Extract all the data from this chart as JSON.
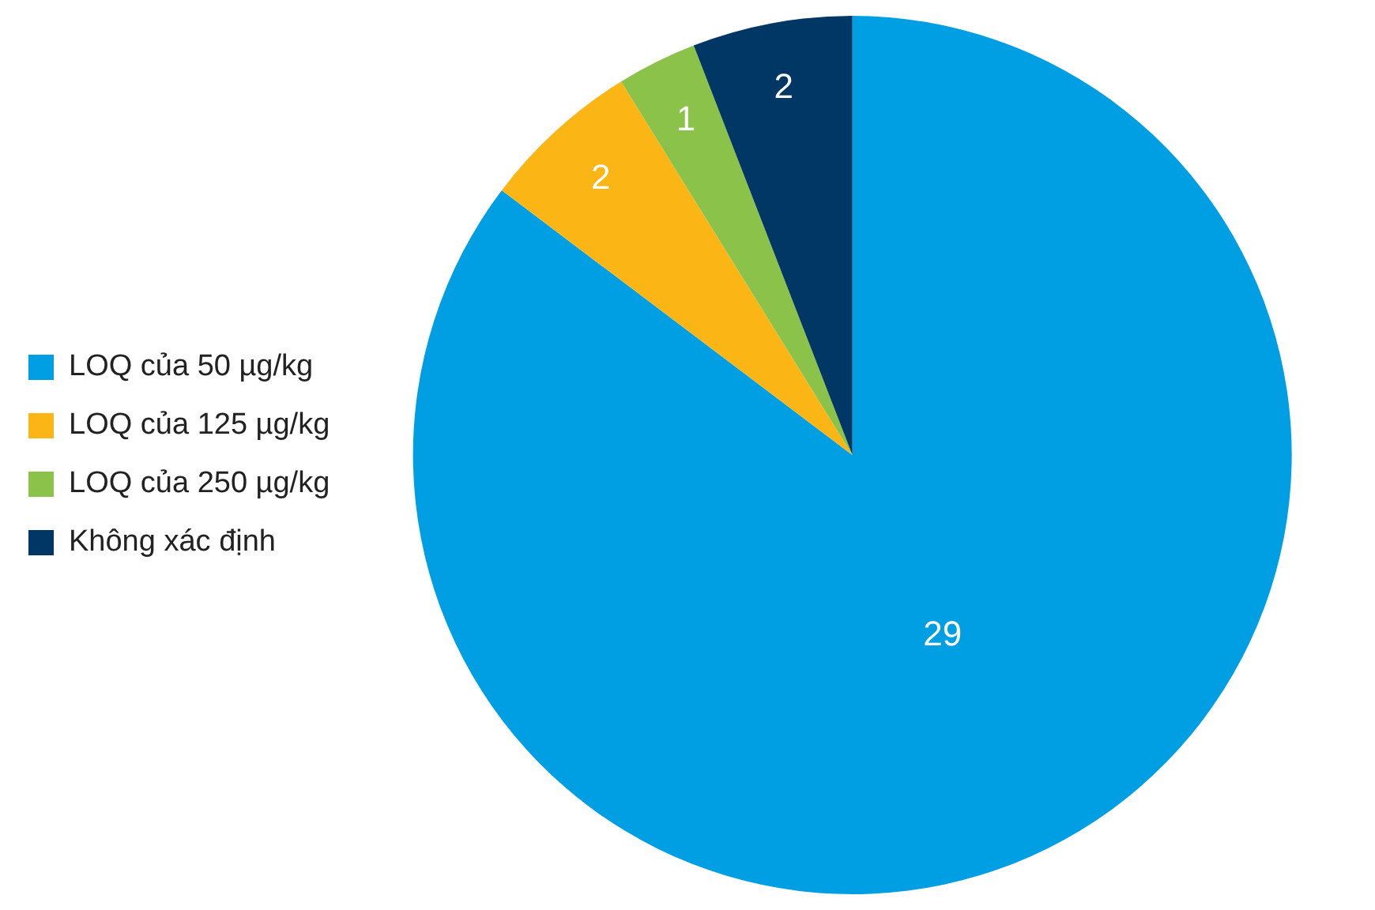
{
  "chart_data": {
    "type": "pie",
    "categories": [
      "LOQ của 50 µg/kg",
      "LOQ của 125 µg/kg",
      "LOQ của 250 µg/kg",
      "Không xác định"
    ],
    "values": [
      29,
      2,
      1,
      2
    ],
    "colors": [
      "#009fe3",
      "#fbb616",
      "#8bc34a",
      "#003764"
    ],
    "data_labels": true,
    "legend": "left"
  }
}
